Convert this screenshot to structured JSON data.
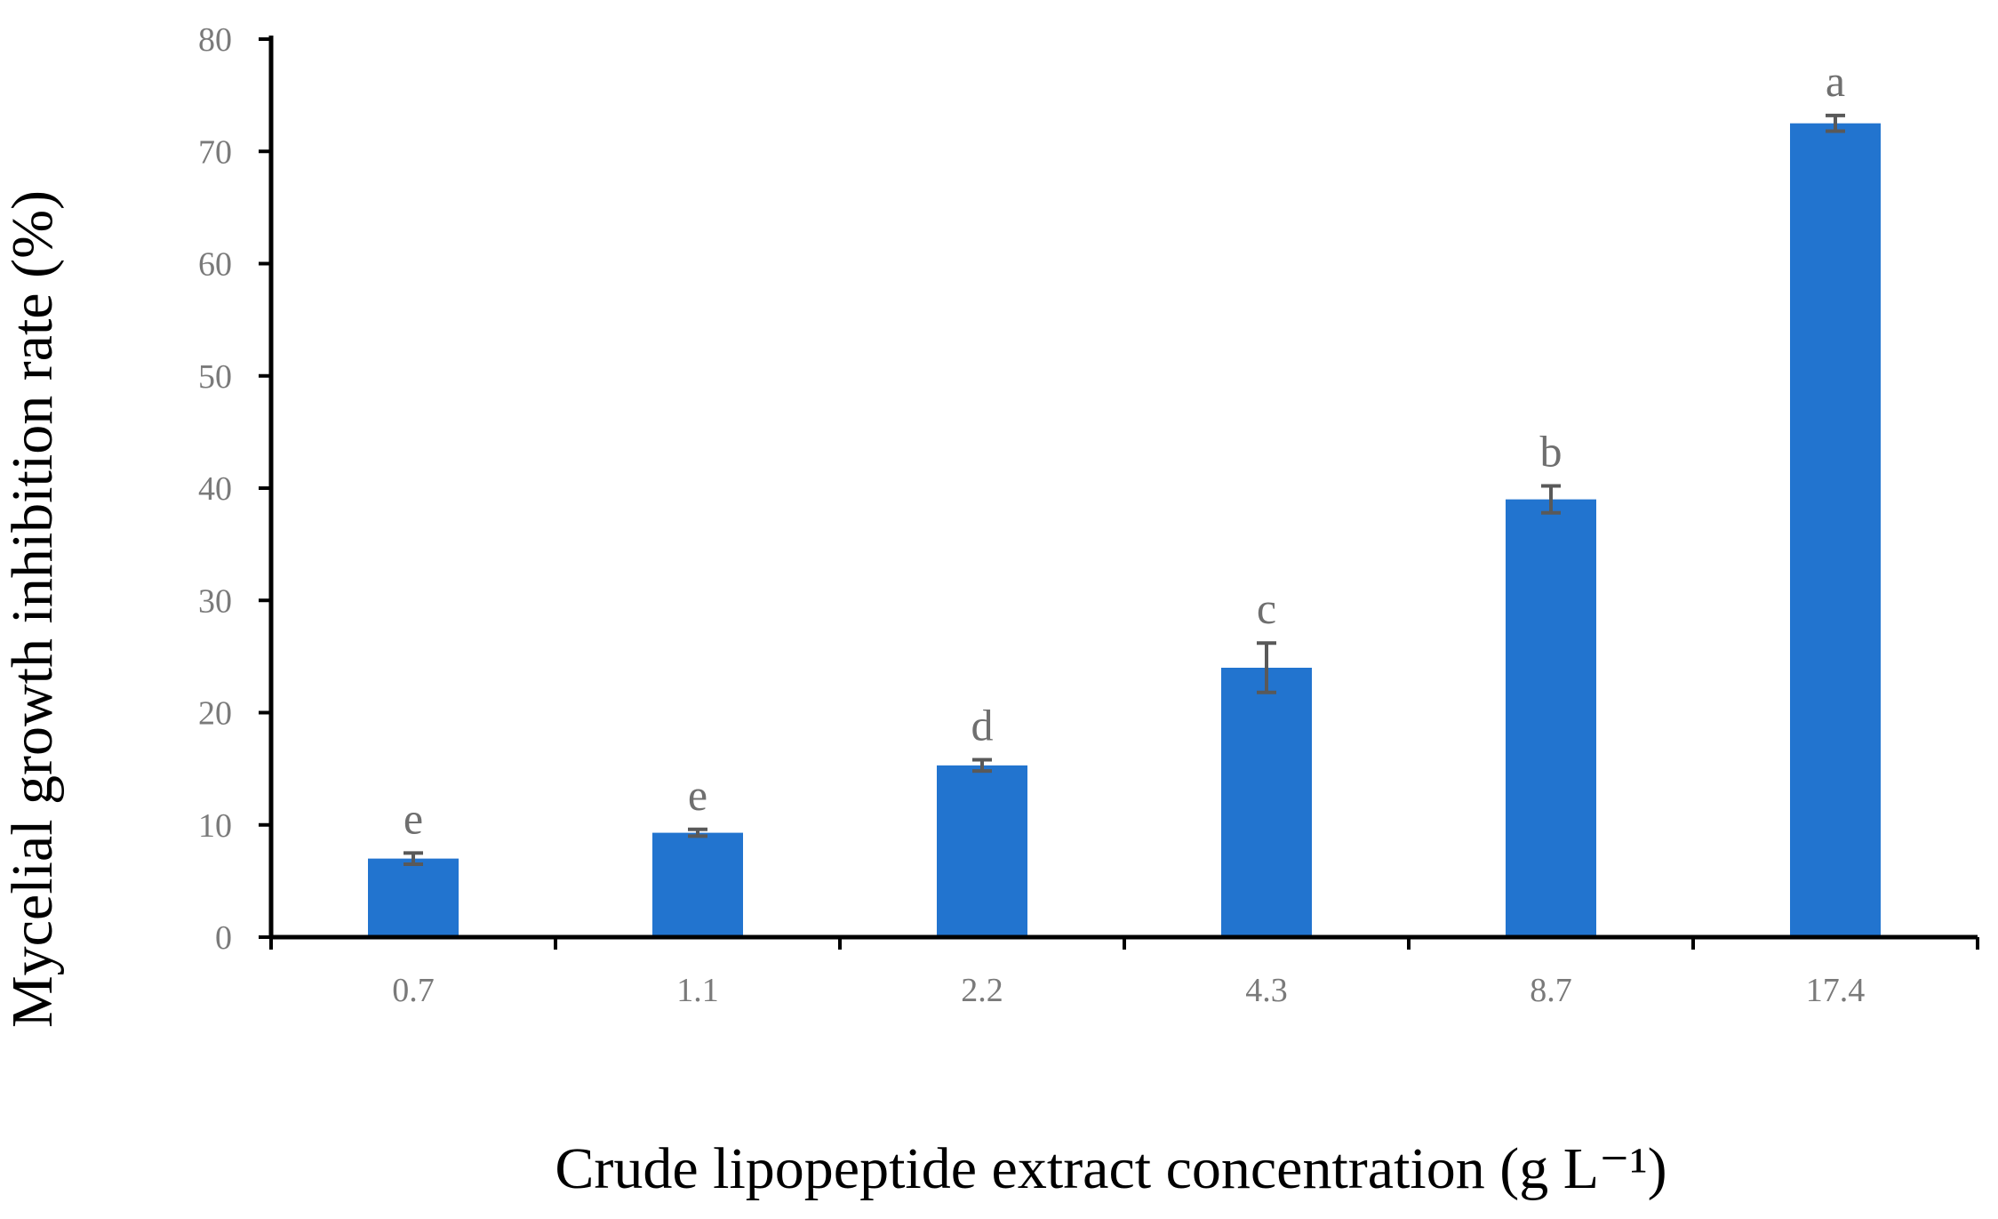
{
  "chart_data": {
    "type": "bar",
    "categories": [
      "0.7",
      "1.1",
      "2.2",
      "4.3",
      "8.7",
      "17.4"
    ],
    "series": [
      {
        "values": [
          7.0,
          9.3,
          15.3,
          24.0,
          39.0,
          72.5
        ],
        "errors": [
          0.5,
          0.3,
          0.5,
          2.2,
          1.2,
          0.7
        ],
        "significance": [
          "e",
          "e",
          "d",
          "c",
          "b",
          "a"
        ]
      }
    ],
    "xlabel": "Crude lipopeptide extract concentration (g L⁻¹)",
    "ylabel": "Mycelial growth inhibition rate (%)",
    "ylim": [
      0,
      80
    ],
    "yticks": [
      0,
      10,
      20,
      30,
      40,
      50,
      60,
      70,
      80
    ],
    "grid": false,
    "legend": "none",
    "colors": {
      "bar": "#2274cf",
      "error_bar": "#595959",
      "axis": "#000000"
    }
  }
}
